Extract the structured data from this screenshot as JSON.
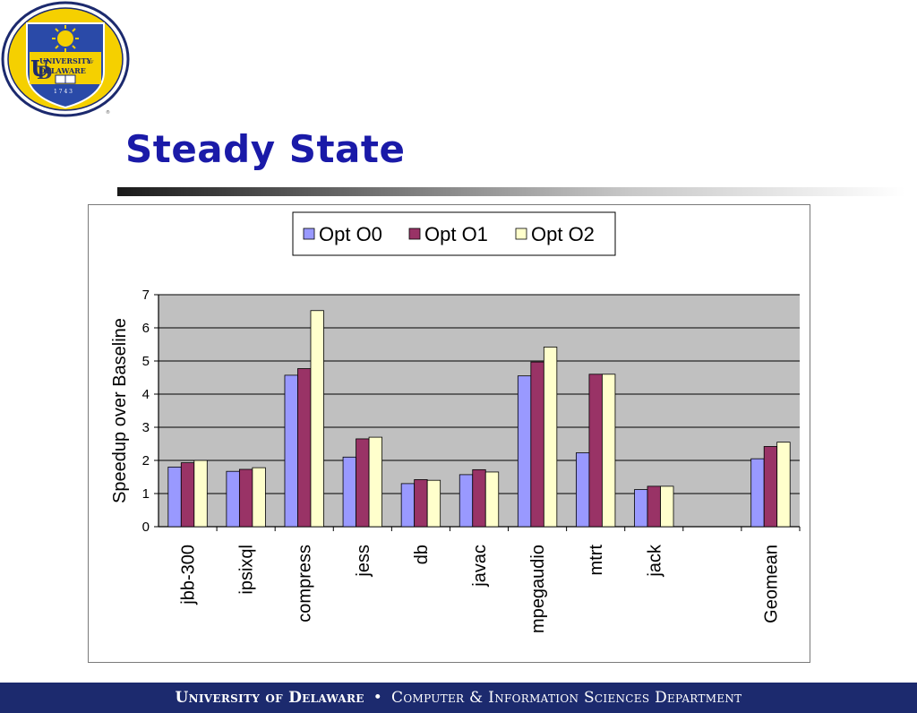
{
  "header": {
    "title": "Steady State"
  },
  "logo": {
    "word_university": "UNIVERSITY",
    "word_of": "OF",
    "word_delaware": "DELAWARE",
    "year": "1 7 4 3",
    "colors": {
      "ring": "#1c2a6e",
      "field": "#f5d000",
      "shield": "#2a4aa8"
    }
  },
  "footer": {
    "left": "University of Delaware",
    "separator": "•",
    "right": "Computer & Information Sciences Department"
  },
  "chart_data": {
    "type": "bar",
    "title": "",
    "xlabel": "",
    "ylabel": "Speedup over Baseline",
    "ylim": [
      0,
      7
    ],
    "yticks": [
      "0",
      "1",
      "2",
      "3",
      "4",
      "5",
      "6",
      "7"
    ],
    "grid": true,
    "legend_position": "top",
    "categories": [
      "jbb-300",
      "ipsixql",
      "compress",
      "jess",
      "db",
      "javac",
      "mpegaudio",
      "mtrt",
      "jack",
      "",
      "Geomean"
    ],
    "series": [
      {
        "name": "Opt O0",
        "color": "#9999ff",
        "values": [
          1.8,
          1.67,
          4.57,
          2.1,
          1.3,
          1.57,
          4.55,
          2.23,
          1.12,
          null,
          2.05
        ]
      },
      {
        "name": "Opt O1",
        "color": "#993366",
        "values": [
          1.93,
          1.73,
          4.77,
          2.65,
          1.42,
          1.72,
          4.97,
          4.6,
          1.22,
          null,
          2.42
        ]
      },
      {
        "name": "Opt O2",
        "color": "#ffffcc",
        "values": [
          2.0,
          1.78,
          6.52,
          2.7,
          1.4,
          1.65,
          5.42,
          4.6,
          1.22,
          null,
          2.55
        ]
      }
    ],
    "colors": {
      "plot_bg": "#c0c0c0",
      "grid": "#000000",
      "bar_outline": "#000000"
    }
  }
}
